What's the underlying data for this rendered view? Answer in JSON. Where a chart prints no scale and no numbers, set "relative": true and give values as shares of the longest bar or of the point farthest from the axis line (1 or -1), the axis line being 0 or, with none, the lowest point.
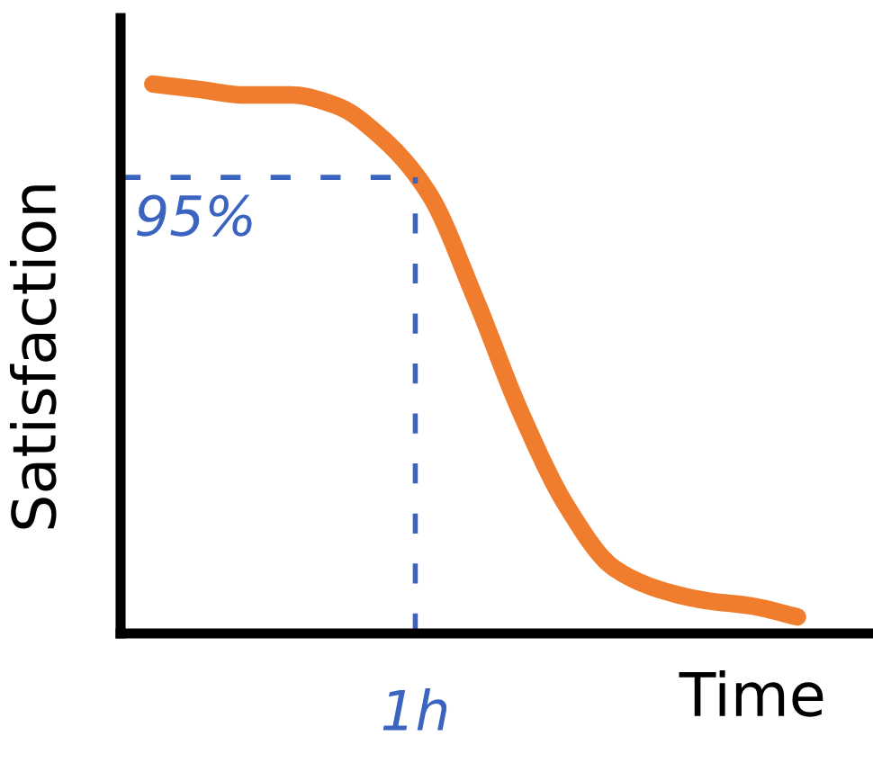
{
  "chart_data": {
    "type": "line",
    "relative": true,
    "xlabel": "Time",
    "ylabel": "Satisfaction",
    "categories": [
      null,
      null,
      null,
      null,
      null,
      null,
      null,
      null,
      null,
      null,
      null,
      null,
      null,
      null,
      null
    ],
    "series": [
      {
        "color": "#f07d2e",
        "values": [
          1.0,
          0.99,
          0.98,
          0.98,
          0.96,
          0.9,
          0.8,
          0.61,
          0.4,
          0.23,
          0.12,
          0.08,
          0.06,
          0.05,
          0.03
        ]
      }
    ],
    "ref_lines": [
      {
        "axis": "y",
        "value": 0.83,
        "color": "#3a64c0",
        "line_style": "dashed"
      }
    ],
    "annotations": [
      "95%",
      "1h"
    ],
    "grid": false,
    "marker": "none",
    "line_style": "solid"
  }
}
